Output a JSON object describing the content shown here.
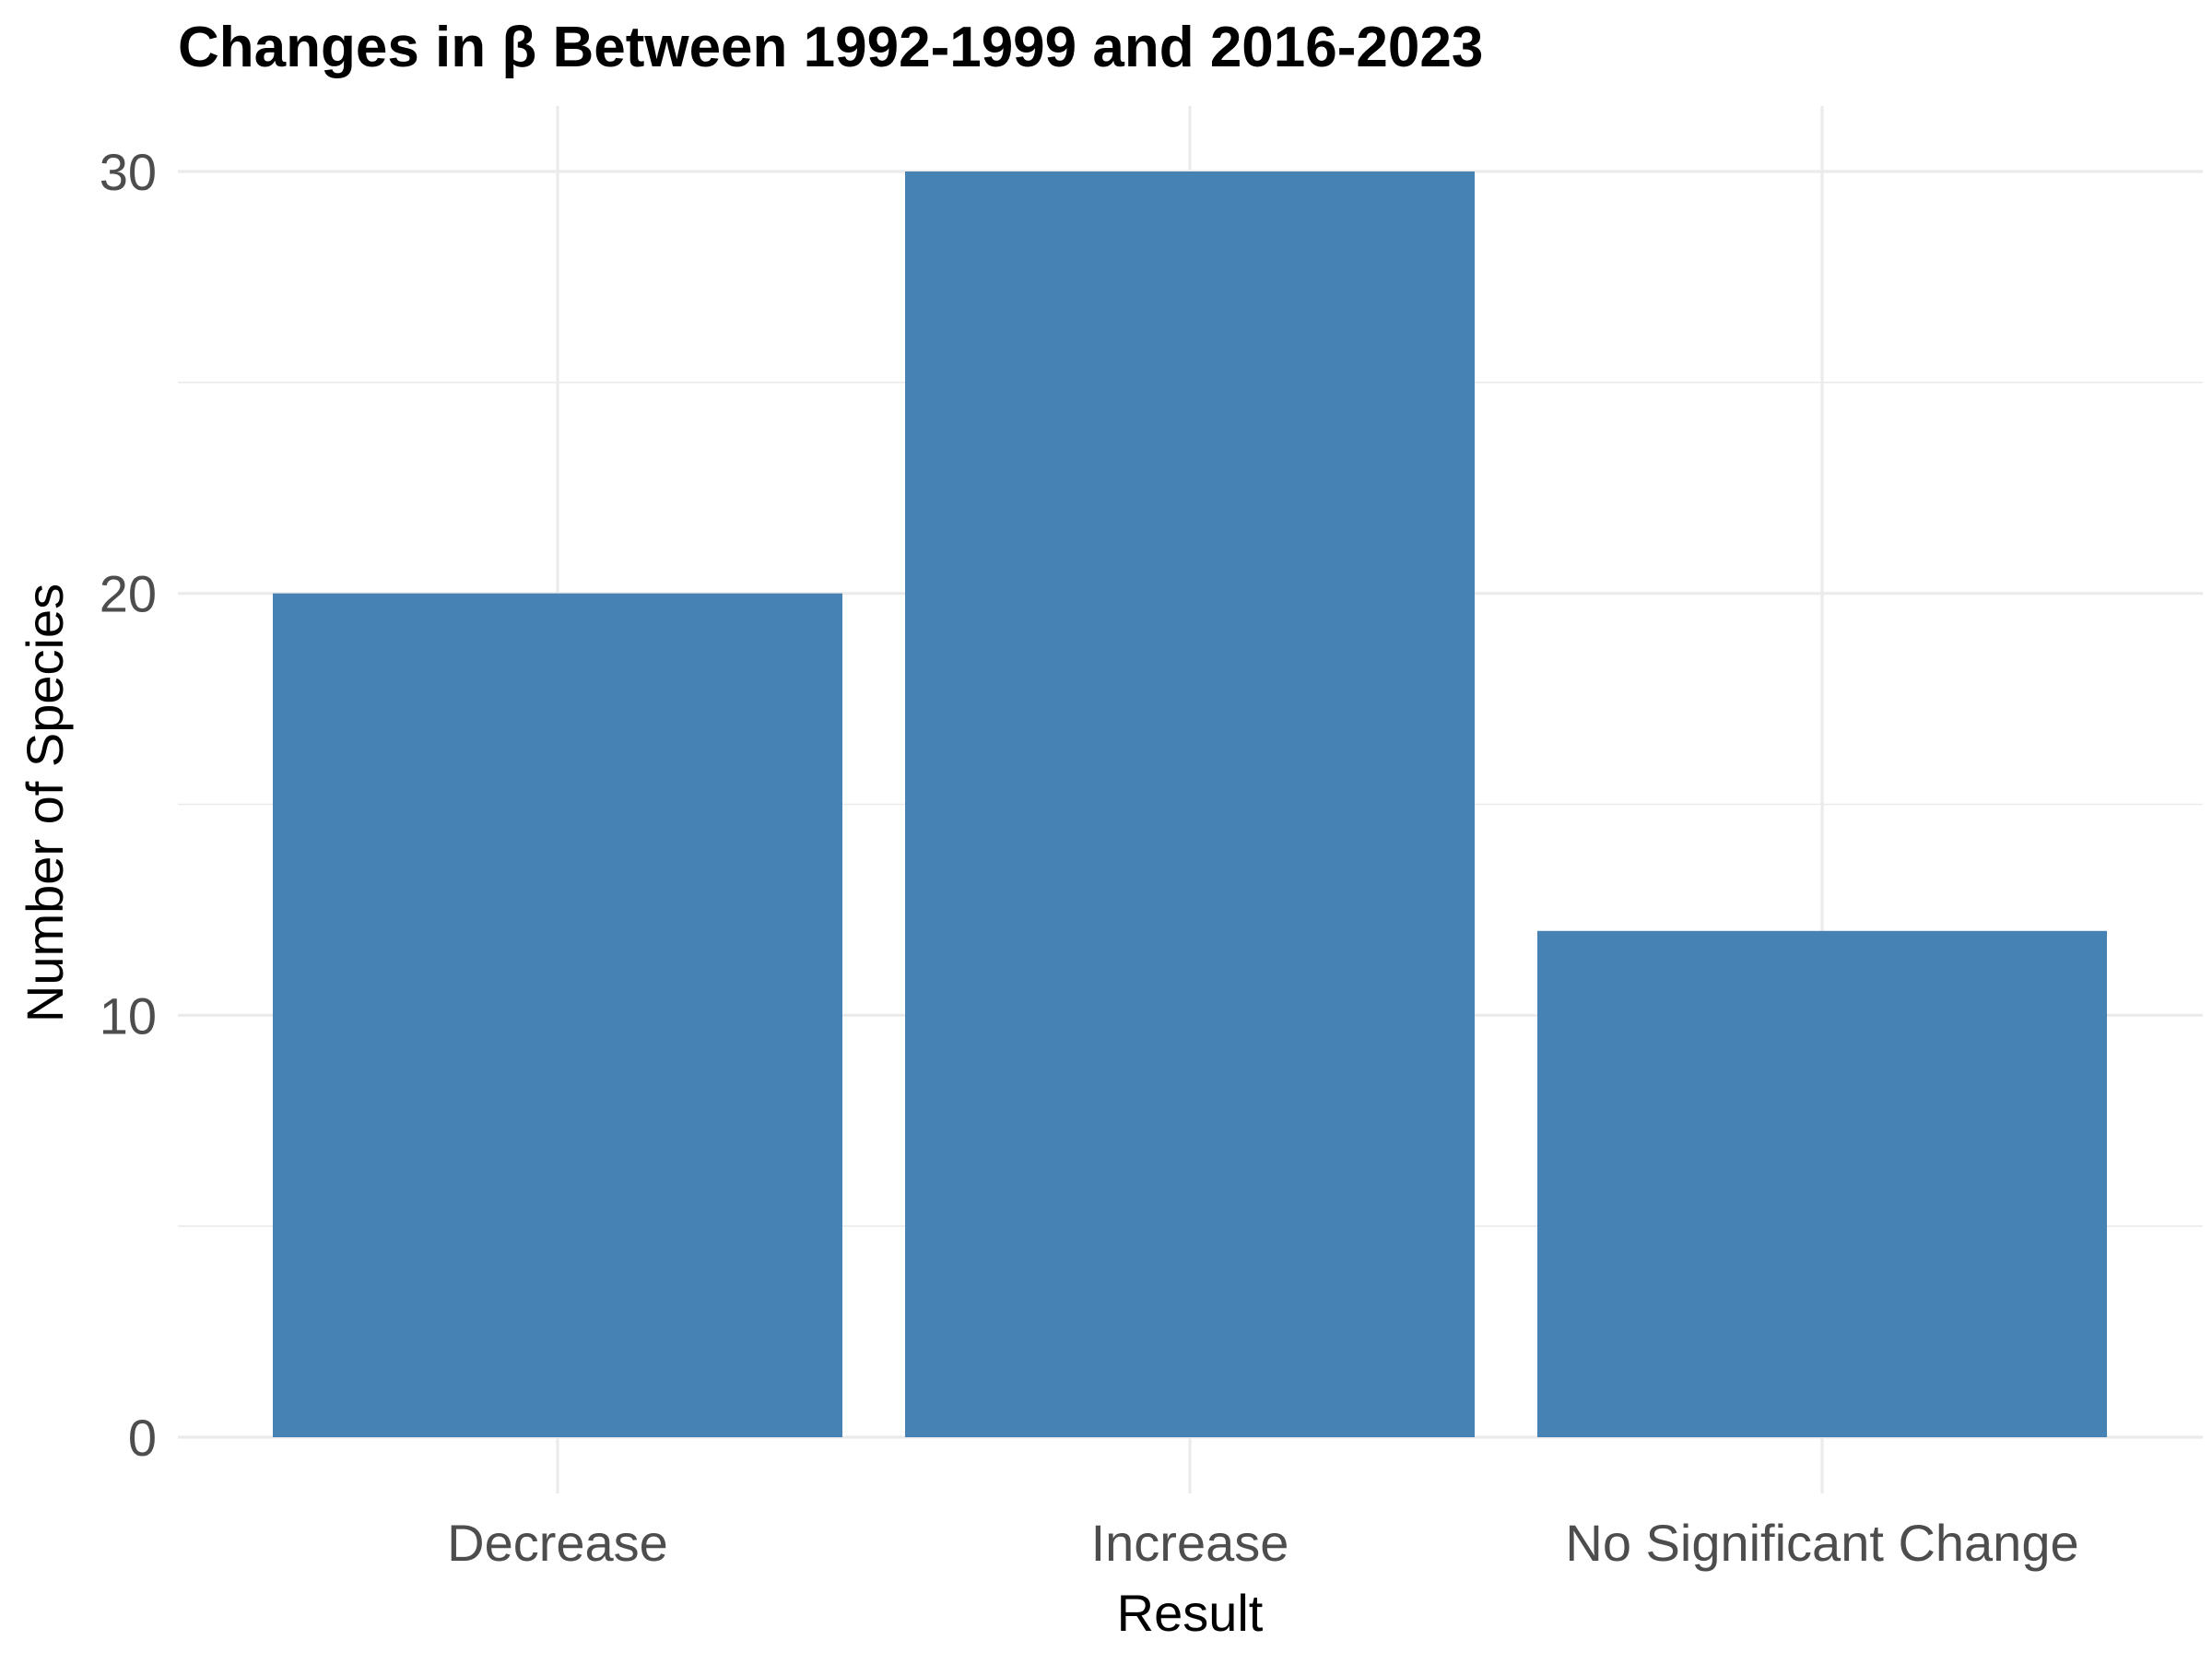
{
  "chart_data": {
    "type": "bar",
    "title": "Changes in β Between 1992-1999 and 2016-2023",
    "xlabel": "Result",
    "ylabel": "Number of Species",
    "categories": [
      "Decrease",
      "Increase",
      "No Significant Change"
    ],
    "values": [
      20,
      30,
      12
    ],
    "ylim": [
      0,
      31.5
    ],
    "yticks": [
      0,
      10,
      20,
      30
    ],
    "minor_yticks": [
      5,
      15,
      25
    ],
    "grid": true,
    "bar_color": "#4682b4",
    "grid_color": "#ebebeb"
  }
}
